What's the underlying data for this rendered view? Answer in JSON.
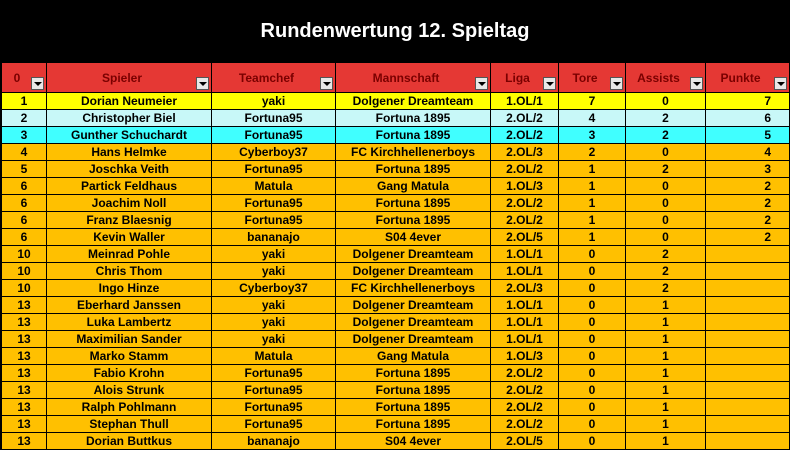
{
  "title": "Rundenwertung 12. Spieltag",
  "headers": [
    "0",
    "Spieler",
    "Teamchef",
    "Mannschaft",
    "Liga",
    "Tore",
    "Assists",
    "Punkte"
  ],
  "row_colors": {
    "yellow": "#ffff00",
    "lightcyan": "#c8f8f8",
    "cyan": "#40ffff",
    "orange": "#ffc000"
  },
  "rows": [
    {
      "color": "yellow",
      "cells": [
        "1",
        "Dorian Neumeier",
        "yaki",
        "Dolgener Dreamteam",
        "1.OL/1",
        "7",
        "0",
        "7"
      ]
    },
    {
      "color": "lightcyan",
      "cells": [
        "2",
        "Christopher Biel",
        "Fortuna95",
        "Fortuna 1895",
        "2.OL/2",
        "4",
        "2",
        "6"
      ]
    },
    {
      "color": "cyan",
      "cells": [
        "3",
        "Gunther Schuchardt",
        "Fortuna95",
        "Fortuna 1895",
        "2.OL/2",
        "3",
        "2",
        "5"
      ]
    },
    {
      "color": "orange",
      "cells": [
        "4",
        "Hans Helmke",
        "Cyberboy37",
        "FC Kirchhellenerboys",
        "2.OL/3",
        "2",
        "0",
        "4"
      ]
    },
    {
      "color": "orange",
      "cells": [
        "5",
        "Joschka Veith",
        "Fortuna95",
        "Fortuna 1895",
        "2.OL/2",
        "1",
        "2",
        "3"
      ]
    },
    {
      "color": "orange",
      "cells": [
        "6",
        "Partick Feldhaus",
        "Matula",
        "Gang Matula",
        "1.OL/3",
        "1",
        "0",
        "2"
      ]
    },
    {
      "color": "orange",
      "cells": [
        "6",
        "Joachim Noll",
        "Fortuna95",
        "Fortuna 1895",
        "2.OL/2",
        "1",
        "0",
        "2"
      ]
    },
    {
      "color": "orange",
      "cells": [
        "6",
        "Franz Blaesnig",
        "Fortuna95",
        "Fortuna 1895",
        "2.OL/2",
        "1",
        "0",
        "2"
      ]
    },
    {
      "color": "orange",
      "cells": [
        "6",
        "Kevin Waller",
        "bananajo",
        "S04 4ever",
        "2.OL/5",
        "1",
        "0",
        "2"
      ]
    },
    {
      "color": "orange",
      "cells": [
        "10",
        "Meinrad Pohle",
        "yaki",
        "Dolgener Dreamteam",
        "1.OL/1",
        "0",
        "2",
        ""
      ]
    },
    {
      "color": "orange",
      "cells": [
        "10",
        "Chris Thom",
        "yaki",
        "Dolgener Dreamteam",
        "1.OL/1",
        "0",
        "2",
        ""
      ]
    },
    {
      "color": "orange",
      "cells": [
        "10",
        "Ingo Hinze",
        "Cyberboy37",
        "FC Kirchhellenerboys",
        "2.OL/3",
        "0",
        "2",
        ""
      ]
    },
    {
      "color": "orange",
      "cells": [
        "13",
        "Eberhard Janssen",
        "yaki",
        "Dolgener Dreamteam",
        "1.OL/1",
        "0",
        "1",
        ""
      ]
    },
    {
      "color": "orange",
      "cells": [
        "13",
        "Luka Lambertz",
        "yaki",
        "Dolgener Dreamteam",
        "1.OL/1",
        "0",
        "1",
        ""
      ]
    },
    {
      "color": "orange",
      "cells": [
        "13",
        "Maximilian Sander",
        "yaki",
        "Dolgener Dreamteam",
        "1.OL/1",
        "0",
        "1",
        ""
      ]
    },
    {
      "color": "orange",
      "cells": [
        "13",
        "Marko Stamm",
        "Matula",
        "Gang Matula",
        "1.OL/3",
        "0",
        "1",
        ""
      ]
    },
    {
      "color": "orange",
      "cells": [
        "13",
        "Fabio Krohn",
        "Fortuna95",
        "Fortuna 1895",
        "2.OL/2",
        "0",
        "1",
        ""
      ]
    },
    {
      "color": "orange",
      "cells": [
        "13",
        "Alois Strunk",
        "Fortuna95",
        "Fortuna 1895",
        "2.OL/2",
        "0",
        "1",
        ""
      ]
    },
    {
      "color": "orange",
      "cells": [
        "13",
        "Ralph Pohlmann",
        "Fortuna95",
        "Fortuna 1895",
        "2.OL/2",
        "0",
        "1",
        ""
      ]
    },
    {
      "color": "orange",
      "cells": [
        "13",
        "Stephan Thull",
        "Fortuna95",
        "Fortuna 1895",
        "2.OL/2",
        "0",
        "1",
        ""
      ]
    },
    {
      "color": "orange",
      "cells": [
        "13",
        "Dorian Buttkus",
        "bananajo",
        "S04 4ever",
        "2.OL/5",
        "0",
        "1",
        ""
      ]
    }
  ]
}
